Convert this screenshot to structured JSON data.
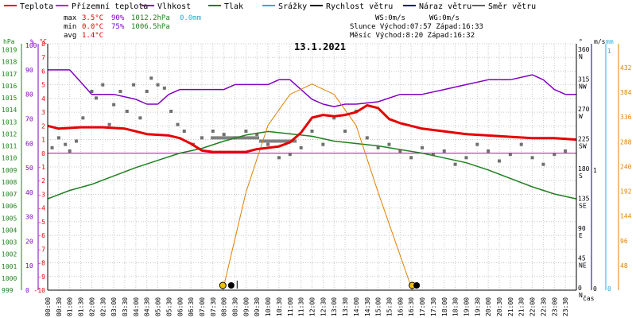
{
  "legend": [
    {
      "label": "Teplota",
      "color": "#e60000"
    },
    {
      "label": "Přízemní teplota",
      "color": "#cc00cc"
    },
    {
      "label": "Vlhkost",
      "color": "#8000c0"
    },
    {
      "label": "Tlak",
      "color": "#208020"
    },
    {
      "label": "Srážky",
      "color": "#20b0e0"
    },
    {
      "label": "Rychlost větru",
      "color": "#000000"
    },
    {
      "label": "Náraz větru",
      "color": "#000080"
    },
    {
      "label": "Směr větru",
      "color": "#606060"
    }
  ],
  "stats": {
    "rows": [
      {
        "label": "max",
        "temp": "3.5°C",
        "hum": "90%",
        "press": "1012.2hPa",
        "rain": "0.0mm"
      },
      {
        "label": "min",
        "temp": "0.0°C",
        "hum": "75%",
        "press": "1006.5hPa",
        "rain": ""
      },
      {
        "label": "avg",
        "temp": "1.4°C",
        "hum": "",
        "press": "",
        "rain": ""
      }
    ],
    "wind_speed": "WS:0m/s",
    "wind_gust": "WG:0m/s",
    "sun": "Slunce Východ:07:57  Západ:16:33",
    "moon": "Měsíc  Východ:8:20   Západ:16:32"
  },
  "colors": {
    "temp": "#e60000",
    "ground": "#cc00cc",
    "hum": "#8000c0",
    "press": "#208020",
    "rain": "#20b0e0",
    "wind": "#000000",
    "gust": "#000080",
    "dir": "#707070",
    "sun": "#e08000",
    "grid": "#c8c8c8"
  },
  "axes": {
    "hpa_unit": "hPa",
    "hpa_ticks": [
      "999",
      "1000",
      "1001",
      "1002",
      "1003",
      "1004",
      "1005",
      "1006",
      "1007",
      "1008",
      "1009",
      "1010",
      "1011",
      "1012",
      "1013",
      "1014",
      "1015",
      "1016",
      "1017",
      "1018",
      "1019"
    ],
    "pct_unit": "%",
    "pct_ticks": [
      "0",
      "10",
      "20",
      "30",
      "40",
      "50",
      "60",
      "70",
      "80",
      "90",
      "100"
    ],
    "c_unit": "°C",
    "c_ticks": [
      "-10",
      "-9",
      "-8",
      "-7",
      "-6",
      "-5",
      "-4",
      "-3",
      "-2",
      "-1",
      "0",
      "1",
      "2",
      "3",
      "4",
      "5",
      "6",
      "7",
      "8"
    ],
    "deg_unit": "°",
    "dir_ticks": [
      {
        "v": "0",
        "l": "N"
      },
      {
        "v": "45",
        "l": "NE"
      },
      {
        "v": "90",
        "l": "E"
      },
      {
        "v": "135",
        "l": "SE"
      },
      {
        "v": "180",
        "l": "S"
      },
      {
        "v": "225",
        "l": "SW"
      },
      {
        "v": "270",
        "l": "W"
      },
      {
        "v": "315",
        "l": "NW"
      },
      {
        "v": "360",
        "l": "N"
      }
    ],
    "ms_unit": "m/s",
    "ms_ticks": [
      "0",
      "1"
    ],
    "mm_unit": "mm",
    "mm_ticks": [
      "0",
      "1"
    ],
    "sun_ticks": [
      "0",
      "48",
      "96",
      "144",
      "192",
      "240",
      "288",
      "336",
      "384",
      "432"
    ],
    "time_label": "čas",
    "time_ticks": [
      "00:00",
      "00:30",
      "01:00",
      "01:30",
      "02:00",
      "02:30",
      "03:00",
      "03:30",
      "04:00",
      "04:30",
      "05:00",
      "05:30",
      "06:00",
      "06:30",
      "07:00",
      "07:30",
      "08:00",
      "08:30",
      "09:00",
      "09:30",
      "10:00",
      "10:30",
      "11:00",
      "11:30",
      "12:00",
      "12:30",
      "13:00",
      "13:30",
      "14:00",
      "14:30",
      "15:00",
      "15:30",
      "16:00",
      "16:30",
      "17:00",
      "17:30",
      "18:00",
      "18:30",
      "19:00",
      "19:30",
      "20:00",
      "20:30",
      "21:00",
      "21:30",
      "22:00",
      "22:30",
      "23:00",
      "23:30"
    ]
  },
  "chart_data": {
    "type": "line",
    "title": "13.1.2021",
    "x_unit": "hour",
    "xlim": [
      0,
      24
    ],
    "series": [
      {
        "name": "Teplota",
        "unit": "°C",
        "color": "#e60000",
        "points": [
          [
            0,
            2
          ],
          [
            0.5,
            1.8
          ],
          [
            1.5,
            1.9
          ],
          [
            2.5,
            1.9
          ],
          [
            3.5,
            1.8
          ],
          [
            4.0,
            1.6
          ],
          [
            4.5,
            1.4
          ],
          [
            5.5,
            1.3
          ],
          [
            6.0,
            1.1
          ],
          [
            6.5,
            0.7
          ],
          [
            7.0,
            0.2
          ],
          [
            7.5,
            0.1
          ],
          [
            9.0,
            0.1
          ],
          [
            9.5,
            0.3
          ],
          [
            10.5,
            0.5
          ],
          [
            11.0,
            0.8
          ],
          [
            11.5,
            1.5
          ],
          [
            12.0,
            2.6
          ],
          [
            12.5,
            2.8
          ],
          [
            13.0,
            2.7
          ],
          [
            13.5,
            2.8
          ],
          [
            14.0,
            3.0
          ],
          [
            14.5,
            3.5
          ],
          [
            15.0,
            3.3
          ],
          [
            15.5,
            2.5
          ],
          [
            16.0,
            2.2
          ],
          [
            16.5,
            2.0
          ],
          [
            17.0,
            1.8
          ],
          [
            18.0,
            1.6
          ],
          [
            19.0,
            1.4
          ],
          [
            20.0,
            1.3
          ],
          [
            21.0,
            1.2
          ],
          [
            22.0,
            1.1
          ],
          [
            23.0,
            1.1
          ],
          [
            24.0,
            1.0
          ]
        ]
      },
      {
        "name": "Přízemní teplota",
        "unit": "°C",
        "color": "#cc00cc",
        "points": [
          [
            0,
            0
          ],
          [
            24,
            0
          ]
        ]
      },
      {
        "name": "Vlhkost",
        "unit": "%",
        "color": "#8000c0",
        "points": [
          [
            0,
            90
          ],
          [
            1.0,
            90
          ],
          [
            1.5,
            85
          ],
          [
            2.0,
            80
          ],
          [
            3.0,
            80
          ],
          [
            4.0,
            78
          ],
          [
            4.5,
            76
          ],
          [
            5.0,
            76
          ],
          [
            5.5,
            80
          ],
          [
            6.0,
            82
          ],
          [
            7.0,
            82
          ],
          [
            8.0,
            82
          ],
          [
            8.5,
            84
          ],
          [
            9.0,
            84
          ],
          [
            10.0,
            84
          ],
          [
            10.5,
            86
          ],
          [
            11.0,
            86
          ],
          [
            11.5,
            82
          ],
          [
            12.0,
            78
          ],
          [
            12.5,
            76
          ],
          [
            13.0,
            75
          ],
          [
            13.5,
            76
          ],
          [
            14.0,
            76
          ],
          [
            15.0,
            77
          ],
          [
            16.0,
            80
          ],
          [
            17.0,
            80
          ],
          [
            18.0,
            82
          ],
          [
            19.0,
            84
          ],
          [
            20.0,
            86
          ],
          [
            21.0,
            86
          ],
          [
            22.0,
            88
          ],
          [
            22.5,
            86
          ],
          [
            23.0,
            82
          ],
          [
            23.5,
            80
          ],
          [
            24.0,
            80
          ]
        ]
      },
      {
        "name": "Tlak",
        "unit": "hPa",
        "color": "#208020",
        "points": [
          [
            0,
            1006.6
          ],
          [
            1.0,
            1007.3
          ],
          [
            2.0,
            1007.8
          ],
          [
            3.0,
            1008.5
          ],
          [
            4.0,
            1009.2
          ],
          [
            5.0,
            1009.8
          ],
          [
            6.0,
            1010.4
          ],
          [
            7.0,
            1010.8
          ],
          [
            8.0,
            1011.4
          ],
          [
            9.0,
            1011.9
          ],
          [
            10.0,
            1012.2
          ],
          [
            11.0,
            1012.0
          ],
          [
            12.0,
            1011.8
          ],
          [
            13.0,
            1011.4
          ],
          [
            14.0,
            1011.2
          ],
          [
            15.0,
            1011.0
          ],
          [
            16.0,
            1010.7
          ],
          [
            17.0,
            1010.4
          ],
          [
            18.0,
            1010.0
          ],
          [
            19.0,
            1009.6
          ],
          [
            20.0,
            1009.0
          ],
          [
            21.0,
            1008.3
          ],
          [
            22.0,
            1007.6
          ],
          [
            23.0,
            1007.0
          ],
          [
            24.0,
            1006.6
          ]
        ]
      },
      {
        "name": "Sluneční svit",
        "unit": "",
        "color": "#e08000",
        "points": [
          [
            7.95,
            0
          ],
          [
            9.0,
            190
          ],
          [
            10.0,
            320
          ],
          [
            11.0,
            380
          ],
          [
            12.0,
            400
          ],
          [
            13.0,
            380
          ],
          [
            14.0,
            320
          ],
          [
            15.0,
            190
          ],
          [
            16.55,
            0
          ]
        ]
      },
      {
        "name": "Směr větru",
        "unit": "°",
        "color": "#707070",
        "points": [
          [
            0.2,
            215
          ],
          [
            0.5,
            230
          ],
          [
            0.8,
            220
          ],
          [
            1.0,
            210
          ],
          [
            1.3,
            225
          ],
          [
            1.6,
            260
          ],
          [
            2.0,
            300
          ],
          [
            2.2,
            290
          ],
          [
            2.5,
            310
          ],
          [
            2.8,
            250
          ],
          [
            3.0,
            280
          ],
          [
            3.3,
            300
          ],
          [
            3.6,
            270
          ],
          [
            3.9,
            310
          ],
          [
            4.2,
            260
          ],
          [
            4.5,
            300
          ],
          [
            4.7,
            320
          ],
          [
            5.0,
            310
          ],
          [
            5.3,
            305
          ],
          [
            5.6,
            270
          ],
          [
            5.9,
            250
          ],
          [
            6.2,
            240
          ],
          [
            6.6,
            220
          ],
          [
            7.0,
            230
          ],
          [
            7.5,
            240
          ],
          [
            8.0,
            235
          ],
          [
            8.5,
            230
          ],
          [
            9.0,
            240
          ],
          [
            9.5,
            235
          ],
          [
            10.0,
            220
          ],
          [
            10.5,
            200
          ],
          [
            11.0,
            205
          ],
          [
            11.5,
            215
          ],
          [
            12.0,
            240
          ],
          [
            12.5,
            220
          ],
          [
            13.0,
            260
          ],
          [
            13.5,
            240
          ],
          [
            14.0,
            270
          ],
          [
            14.5,
            230
          ],
          [
            15.0,
            215
          ],
          [
            15.5,
            220
          ],
          [
            16.0,
            210
          ],
          [
            16.5,
            200
          ],
          [
            17.0,
            215
          ],
          [
            17.5,
            205
          ],
          [
            18.0,
            210
          ],
          [
            18.5,
            190
          ],
          [
            19.0,
            200
          ],
          [
            19.5,
            220
          ],
          [
            20.0,
            210
          ],
          [
            20.5,
            195
          ],
          [
            21.0,
            205
          ],
          [
            21.5,
            220
          ],
          [
            22.0,
            200
          ],
          [
            22.5,
            190
          ],
          [
            23.0,
            205
          ],
          [
            23.5,
            210
          ]
        ]
      }
    ]
  }
}
